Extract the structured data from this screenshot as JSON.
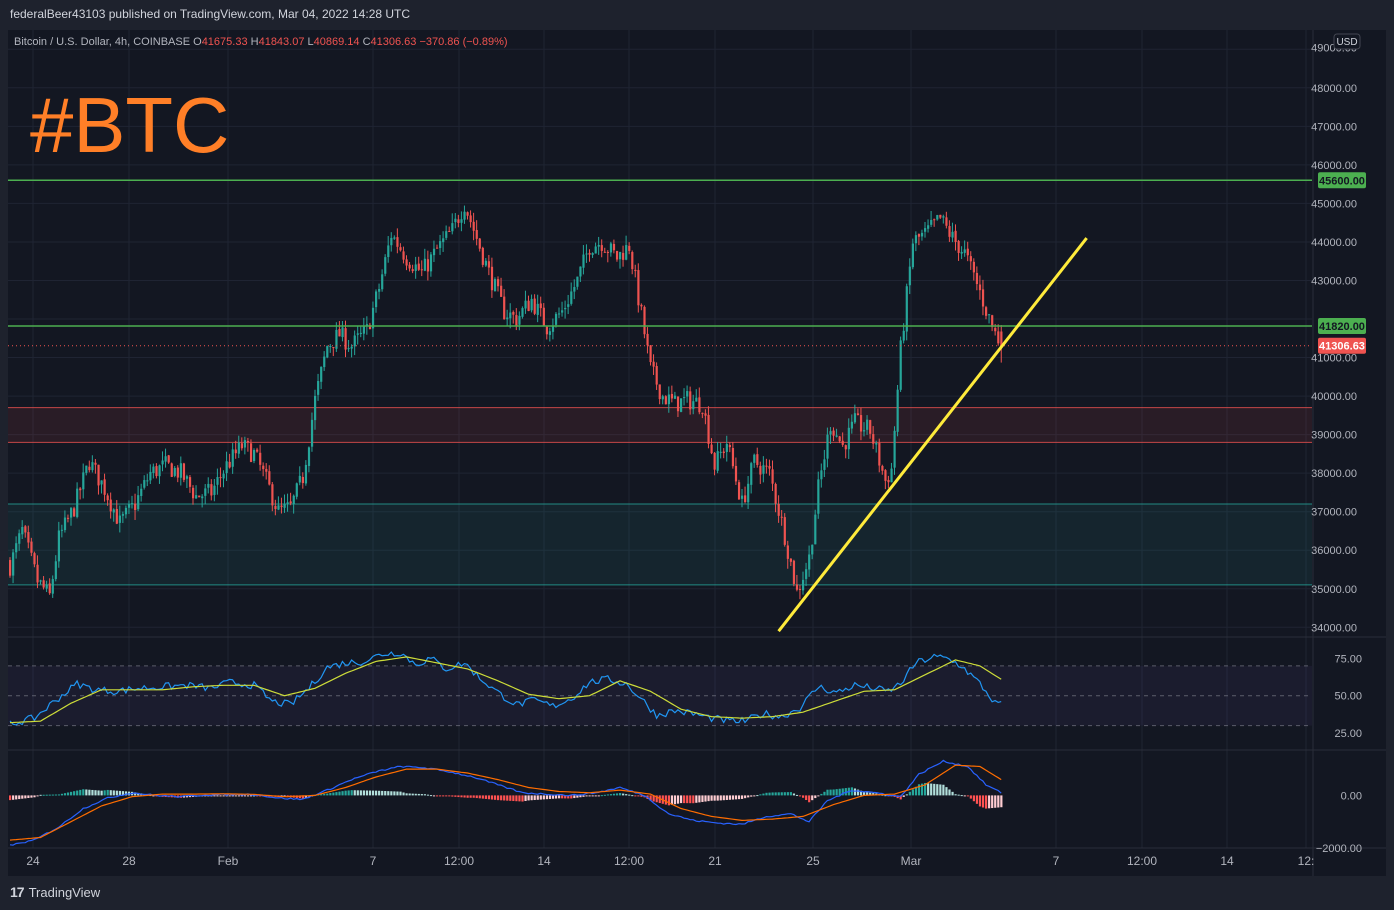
{
  "publisher_line": "federalBeer43103 published on TradingView.com, Mar 04, 2022 14:28 UTC",
  "watermark": "#BTC",
  "footer_brand": "TradingView",
  "footer_logo_glyph": "17",
  "currency_button": "USD",
  "legend": {
    "symbol": "Bitcoin / U.S. Dollar, 4h, COINBASE",
    "o_label": "O",
    "o_value": "41675.33",
    "h_label": "H",
    "h_value": "41843.07",
    "l_label": "L",
    "l_value": "40869.14",
    "c_label": "C",
    "c_value": "41306.63",
    "change": "−370.86 (−0.89%)"
  },
  "colors": {
    "up": "#26a69a",
    "down": "#ef5350",
    "level_line": "#4caf50",
    "trend_line": "#ffeb3b",
    "watermark": "#ff7f27",
    "rsi": "#2196f3",
    "rsi_ma": "#cddc39",
    "macd": "#2962ff",
    "signal": "#ff6d00"
  },
  "chart_data": [
    {
      "type": "candlestick",
      "title": "Bitcoin / U.S. Dollar, 4h, COINBASE",
      "ylim": [
        33800,
        49500
      ],
      "y_ticks": [
        "49000.00",
        "48000.00",
        "47000.00",
        "46000.00",
        "45000.00",
        "44000.00",
        "43000.00",
        "42000.00",
        "41000.00",
        "40000.00",
        "39000.00",
        "38000.00",
        "37000.00",
        "36000.00",
        "35000.00",
        "34000.00"
      ],
      "x_tick_labels": [
        "24",
        "28",
        "Feb",
        "7",
        "12:00",
        "14",
        "12:00",
        "21",
        "25",
        "Mar",
        "7",
        "12:00",
        "14",
        "12:"
      ],
      "close_path": [
        [
          0,
          35600
        ],
        [
          4,
          36500
        ],
        [
          9,
          35200
        ],
        [
          13,
          34800
        ],
        [
          16,
          36300
        ],
        [
          21,
          37100
        ],
        [
          26,
          38300
        ],
        [
          31,
          37600
        ],
        [
          36,
          36700
        ],
        [
          41,
          37200
        ],
        [
          46,
          38000
        ],
        [
          51,
          38200
        ],
        [
          56,
          38000
        ],
        [
          61,
          37400
        ],
        [
          66,
          37500
        ],
        [
          71,
          38200
        ],
        [
          76,
          38700
        ],
        [
          80,
          38500
        ],
        [
          84,
          37800
        ],
        [
          88,
          37000
        ],
        [
          92,
          37100
        ],
        [
          96,
          37900
        ],
        [
          100,
          39900
        ],
        [
          104,
          41300
        ],
        [
          108,
          41600
        ],
        [
          112,
          41300
        ],
        [
          117,
          41700
        ],
        [
          121,
          42800
        ],
        [
          125,
          44200
        ],
        [
          130,
          43600
        ],
        [
          135,
          43200
        ],
        [
          140,
          43800
        ],
        [
          145,
          44300
        ],
        [
          149,
          45000
        ],
        [
          153,
          44100
        ],
        [
          157,
          43200
        ],
        [
          162,
          42200
        ],
        [
          166,
          42000
        ],
        [
          171,
          42500
        ],
        [
          176,
          41800
        ],
        [
          181,
          42200
        ],
        [
          186,
          43000
        ],
        [
          190,
          43900
        ],
        [
          194,
          44000
        ],
        [
          199,
          43600
        ],
        [
          203,
          43900
        ],
        [
          207,
          42100
        ],
        [
          210,
          40700
        ],
        [
          214,
          40000
        ],
        [
          218,
          39800
        ],
        [
          222,
          39900
        ],
        [
          227,
          39800
        ],
        [
          231,
          38200
        ],
        [
          235,
          38800
        ],
        [
          240,
          37200
        ],
        [
          244,
          38300
        ],
        [
          249,
          38000
        ],
        [
          254,
          36400
        ],
        [
          258,
          34900
        ],
        [
          262,
          35800
        ],
        [
          265,
          37600
        ],
        [
          269,
          39300
        ],
        [
          273,
          38700
        ],
        [
          277,
          39300
        ],
        [
          282,
          39100
        ],
        [
          287,
          37800
        ],
        [
          289,
          38100
        ],
        [
          292,
          41200
        ],
        [
          296,
          44000
        ],
        [
          300,
          44200
        ],
        [
          305,
          44600
        ],
        [
          309,
          44100
        ],
        [
          313,
          43700
        ],
        [
          318,
          42700
        ],
        [
          322,
          41800
        ],
        [
          325,
          41306.63
        ]
      ],
      "last_candle": {
        "open": 41675.33,
        "high": 41843.07,
        "low": 40869.14,
        "close": 41306.63
      },
      "horizontal_levels": [
        {
          "label": "45600.00",
          "value": 45600,
          "color": "#4caf50"
        },
        {
          "label": "41820.00",
          "value": 41820,
          "color": "#4caf50"
        }
      ],
      "last_price_label": "41306.63",
      "zones": [
        {
          "from": 38800,
          "to": 39700,
          "color": "#ef5350"
        },
        {
          "from": 35100,
          "to": 37200,
          "color": "#26a69a"
        }
      ],
      "trend_line": {
        "from": [
          252,
          33900
        ],
        "to": [
          353,
          44100
        ]
      }
    },
    {
      "type": "line",
      "title": "",
      "series_kind": "RSI",
      "ylim": [
        15,
        88
      ],
      "y_ticks": [
        "75.00",
        "50.00",
        "25.00"
      ],
      "bands": [
        70,
        50,
        30
      ],
      "rsi": [
        [
          0,
          31
        ],
        [
          8,
          35
        ],
        [
          15,
          47
        ],
        [
          22,
          58
        ],
        [
          28,
          54
        ],
        [
          35,
          53
        ],
        [
          42,
          55
        ],
        [
          50,
          56
        ],
        [
          58,
          57
        ],
        [
          66,
          55
        ],
        [
          72,
          59
        ],
        [
          80,
          57
        ],
        [
          86,
          46
        ],
        [
          92,
          44
        ],
        [
          98,
          55
        ],
        [
          104,
          69
        ],
        [
          110,
          72
        ],
        [
          116,
          73
        ],
        [
          122,
          78
        ],
        [
          128,
          79
        ],
        [
          133,
          71
        ],
        [
          138,
          75
        ],
        [
          143,
          68
        ],
        [
          149,
          72
        ],
        [
          154,
          62
        ],
        [
          160,
          52
        ],
        [
          166,
          44
        ],
        [
          172,
          47
        ],
        [
          178,
          43
        ],
        [
          184,
          48
        ],
        [
          190,
          59
        ],
        [
          196,
          61
        ],
        [
          202,
          58
        ],
        [
          207,
          48
        ],
        [
          212,
          37
        ],
        [
          218,
          40
        ],
        [
          224,
          38
        ],
        [
          230,
          35
        ],
        [
          236,
          33
        ],
        [
          241,
          33
        ],
        [
          247,
          38
        ],
        [
          253,
          36
        ],
        [
          259,
          42
        ],
        [
          265,
          56
        ],
        [
          271,
          52
        ],
        [
          277,
          57
        ],
        [
          283,
          55
        ],
        [
          288,
          53
        ],
        [
          292,
          58
        ],
        [
          297,
          72
        ],
        [
          303,
          76
        ],
        [
          307,
          75
        ],
        [
          312,
          70
        ],
        [
          318,
          58
        ],
        [
          323,
          45
        ],
        [
          325,
          44
        ]
      ],
      "rsi_ma": [
        [
          0,
          32
        ],
        [
          10,
          33
        ],
        [
          20,
          45
        ],
        [
          30,
          54
        ],
        [
          40,
          54
        ],
        [
          50,
          54
        ],
        [
          60,
          56
        ],
        [
          70,
          57
        ],
        [
          80,
          57
        ],
        [
          90,
          50
        ],
        [
          100,
          55
        ],
        [
          110,
          65
        ],
        [
          120,
          73
        ],
        [
          130,
          76
        ],
        [
          140,
          72
        ],
        [
          150,
          68
        ],
        [
          160,
          60
        ],
        [
          170,
          51
        ],
        [
          180,
          48
        ],
        [
          190,
          50
        ],
        [
          200,
          60
        ],
        [
          210,
          53
        ],
        [
          220,
          41
        ],
        [
          230,
          36
        ],
        [
          240,
          35
        ],
        [
          250,
          36
        ],
        [
          260,
          39
        ],
        [
          270,
          46
        ],
        [
          280,
          53
        ],
        [
          290,
          54
        ],
        [
          300,
          64
        ],
        [
          310,
          74
        ],
        [
          318,
          70
        ],
        [
          325,
          61
        ]
      ]
    },
    {
      "type": "line",
      "title": "",
      "series_kind": "MACD",
      "ylim": [
        -2000,
        1650
      ],
      "y_ticks": [
        "0.00",
        "−2000.00"
      ],
      "macd": [
        [
          0,
          -1900
        ],
        [
          8,
          -1700
        ],
        [
          16,
          -1200
        ],
        [
          24,
          -500
        ],
        [
          32,
          -100
        ],
        [
          40,
          100
        ],
        [
          48,
          0
        ],
        [
          56,
          -50
        ],
        [
          64,
          20
        ],
        [
          72,
          30
        ],
        [
          80,
          40
        ],
        [
          88,
          -100
        ],
        [
          96,
          -150
        ],
        [
          104,
          200
        ],
        [
          112,
          600
        ],
        [
          120,
          900
        ],
        [
          128,
          1100
        ],
        [
          136,
          1050
        ],
        [
          144,
          900
        ],
        [
          152,
          700
        ],
        [
          160,
          400
        ],
        [
          168,
          100
        ],
        [
          176,
          50
        ],
        [
          184,
          0
        ],
        [
          192,
          100
        ],
        [
          200,
          300
        ],
        [
          208,
          0
        ],
        [
          216,
          -700
        ],
        [
          224,
          -950
        ],
        [
          232,
          -1050
        ],
        [
          240,
          -1100
        ],
        [
          248,
          -800
        ],
        [
          256,
          -700
        ],
        [
          262,
          -1000
        ],
        [
          268,
          -200
        ],
        [
          276,
          200
        ],
        [
          284,
          100
        ],
        [
          292,
          -50
        ],
        [
          298,
          800
        ],
        [
          306,
          1300
        ],
        [
          314,
          1100
        ],
        [
          320,
          400
        ],
        [
          325,
          100
        ]
      ],
      "signal": [
        [
          0,
          -1700
        ],
        [
          10,
          -1600
        ],
        [
          20,
          -1000
        ],
        [
          30,
          -400
        ],
        [
          40,
          -50
        ],
        [
          50,
          50
        ],
        [
          60,
          50
        ],
        [
          70,
          60
        ],
        [
          80,
          40
        ],
        [
          90,
          -50
        ],
        [
          100,
          0
        ],
        [
          110,
          300
        ],
        [
          120,
          700
        ],
        [
          130,
          1000
        ],
        [
          140,
          1000
        ],
        [
          150,
          850
        ],
        [
          160,
          600
        ],
        [
          170,
          300
        ],
        [
          180,
          150
        ],
        [
          190,
          100
        ],
        [
          200,
          200
        ],
        [
          210,
          50
        ],
        [
          220,
          -500
        ],
        [
          230,
          -800
        ],
        [
          240,
          -950
        ],
        [
          250,
          -900
        ],
        [
          260,
          -800
        ],
        [
          270,
          -350
        ],
        [
          280,
          0
        ],
        [
          290,
          50
        ],
        [
          300,
          400
        ],
        [
          310,
          1150
        ],
        [
          318,
          1100
        ],
        [
          325,
          600
        ]
      ]
    }
  ]
}
